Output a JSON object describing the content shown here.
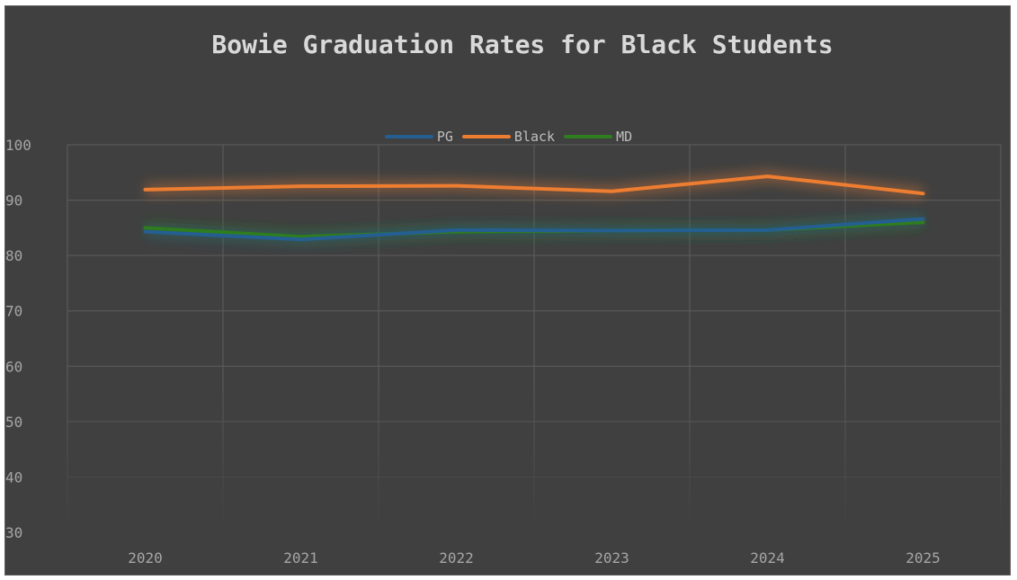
{
  "chart_data": {
    "type": "line",
    "title": "Bowie Graduation Rates for Black Students",
    "categories": [
      "2020",
      "2021",
      "2022",
      "2023",
      "2024",
      "2025"
    ],
    "series": [
      {
        "name": "PG",
        "color": "#255e91",
        "values": [
          84.3,
          82.9,
          84.6,
          84.5,
          84.6,
          86.6
        ]
      },
      {
        "name": "Black",
        "color": "#ed7d31",
        "values": [
          91.9,
          92.5,
          92.6,
          91.6,
          94.3,
          91.2
        ]
      },
      {
        "name": "MD",
        "color": "#2e7d1e",
        "values": [
          85.0,
          83.4,
          84.3,
          84.5,
          84.6,
          86.0
        ]
      }
    ],
    "ylim": [
      30,
      100
    ],
    "yticks": [
      "30",
      "40",
      "50",
      "60",
      "70",
      "80",
      "90",
      "100"
    ],
    "grid": true,
    "legend_position": "top"
  }
}
